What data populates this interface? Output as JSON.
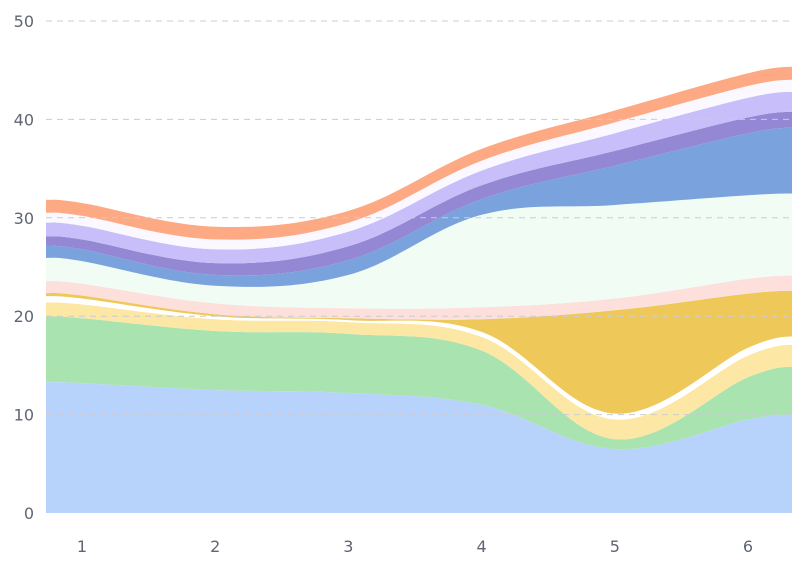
{
  "chart_data": {
    "type": "area",
    "stacked": true,
    "smooth": true,
    "title": "",
    "xlabel": "",
    "ylabel": "",
    "x": [
      1,
      2,
      3,
      4,
      5,
      6
    ],
    "x_ticks": [
      "1",
      "2",
      "3",
      "4",
      "5",
      "6"
    ],
    "y_ticks": [
      "0",
      "10",
      "20",
      "30",
      "40",
      "50"
    ],
    "ylim": [
      0,
      50
    ],
    "grid": true,
    "legend": "none",
    "series": [
      {
        "color": "#b8d3fb",
        "values": [
          13.2,
          12.5,
          12.2,
          11.0,
          6.5,
          9.5
        ]
      },
      {
        "color": "#a8e3b0",
        "values": [
          6.6,
          6.0,
          6.0,
          5.5,
          1.0,
          4.3
        ]
      },
      {
        "color": "#fde7a5",
        "values": [
          1.4,
          1.2,
          1.2,
          1.4,
          2.0,
          2.2
        ]
      },
      {
        "color": "#ffffff",
        "values": [
          0.6,
          0.3,
          0.2,
          0.5,
          0.6,
          0.8
        ]
      },
      {
        "color": "#eec95a",
        "values": [
          0.3,
          0.2,
          0.2,
          1.3,
          10.5,
          5.5
        ]
      },
      {
        "color": "#fde0dc",
        "values": [
          1.2,
          1.1,
          1.0,
          1.2,
          1.2,
          1.5
        ]
      },
      {
        "color": "#f0fcf4",
        "values": [
          2.3,
          1.8,
          3.4,
          9.4,
          9.5,
          8.5
        ]
      },
      {
        "color": "#7aa2dc",
        "values": [
          1.2,
          1.1,
          1.5,
          1.6,
          4.0,
          6.3
        ]
      },
      {
        "color": "#9487d4",
        "values": [
          1.0,
          1.2,
          1.4,
          1.4,
          1.5,
          1.6
        ]
      },
      {
        "color": "#c8befa",
        "values": [
          1.4,
          1.4,
          1.5,
          1.5,
          1.8,
          2.0
        ]
      },
      {
        "color": "#fbf9ff",
        "values": [
          1.0,
          1.0,
          0.9,
          1.0,
          1.1,
          1.2
        ]
      },
      {
        "color": "#fdaa84",
        "values": [
          1.3,
          1.3,
          1.2,
          1.2,
          1.2,
          1.3
        ]
      }
    ]
  }
}
